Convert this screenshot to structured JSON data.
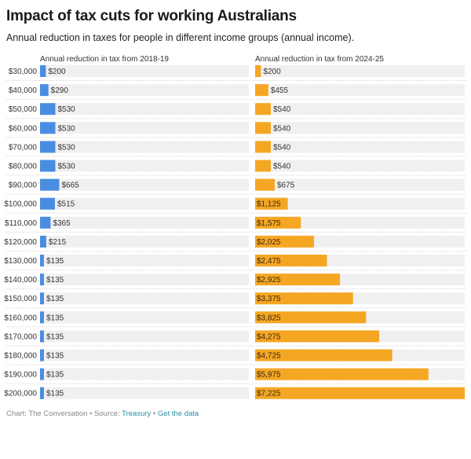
{
  "header": {
    "title": "Impact of tax cuts for working Australians",
    "subtitle": "Annual reduction in taxes for people in different income groups (annual income)."
  },
  "footer": {
    "chart_credit": "Chart: The Conversation",
    "separator": " • ",
    "source_label": "Source: ",
    "source_link": "Treasury",
    "data_link": "Get the data"
  },
  "colors": {
    "series1": "#4a8de0",
    "series2": "#f5a623",
    "track": "#f0f0f0"
  },
  "chart_data": {
    "type": "bar",
    "orientation": "horizontal",
    "title": "Impact of tax cuts for working Australians",
    "subtitle": "Annual reduction in taxes for people in different income groups (annual income).",
    "categories": [
      "$30,000",
      "$40,000",
      "$50,000",
      "$60,000",
      "$70,000",
      "$80,000",
      "$90,000",
      "$100,000",
      "$110,000",
      "$120,000",
      "$130,000",
      "$140,000",
      "$150,000",
      "$160,000",
      "$170,000",
      "$180,000",
      "$190,000",
      "$200,000"
    ],
    "xlim": [
      0,
      7225
    ],
    "series": [
      {
        "name": "Annual reduction in tax from 2018-19",
        "values": [
          200,
          290,
          530,
          530,
          530,
          530,
          665,
          515,
          365,
          215,
          135,
          135,
          135,
          135,
          135,
          135,
          135,
          135
        ],
        "labels": [
          "$200",
          "$290",
          "$530",
          "$530",
          "$530",
          "$530",
          "$665",
          "$515",
          "$365",
          "$215",
          "$135",
          "$135",
          "$135",
          "$135",
          "$135",
          "$135",
          "$135",
          "$135"
        ]
      },
      {
        "name": "Annual reduction in tax from 2024-25",
        "values": [
          200,
          455,
          540,
          540,
          540,
          540,
          675,
          1125,
          1575,
          2025,
          2475,
          2925,
          3375,
          3825,
          4275,
          4725,
          5975,
          7225
        ],
        "labels": [
          "$200",
          "$455",
          "$540",
          "$540",
          "$540",
          "$540",
          "$675",
          "$1,125",
          "$1,575",
          "$2,025",
          "$2,475",
          "$2,925",
          "$3,375",
          "$3,825",
          "$4,275",
          "$4,725",
          "$5,975",
          "$7,225"
        ]
      }
    ],
    "legend": "panel-titles-above",
    "grid": false
  }
}
